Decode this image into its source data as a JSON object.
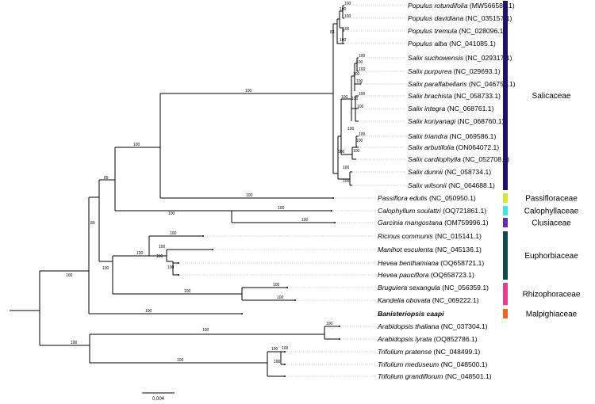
{
  "taxa": [
    {
      "id": "t0",
      "genus": "Populus",
      "species": "rotundifolia",
      "acc": "(MW566588.1)",
      "ymid": 0
    },
    {
      "id": "t1",
      "genus": "Populus",
      "species": "davidiana",
      "acc": "(NC_035157.1)"
    },
    {
      "id": "t2",
      "genus": "Populus",
      "species": "tremula",
      "acc": "(NC_028096.1)"
    },
    {
      "id": "t3",
      "genus": "Populus",
      "species": "alba",
      "acc": "(NC_041085.1)"
    },
    {
      "id": "t4",
      "genus": "Salix",
      "species": "suchowensis",
      "acc": "(NC_029317.1)"
    },
    {
      "id": "t5",
      "genus": "Salix",
      "species": "purpurea",
      "acc": "(NC_029693.1)"
    },
    {
      "id": "t6",
      "genus": "Salix",
      "species": "paraflabellaris",
      "acc": "(NC_046754.1)"
    },
    {
      "id": "t7",
      "genus": "Salix",
      "species": "brachista",
      "acc": "(NC_058733.1)"
    },
    {
      "id": "t8",
      "genus": "Salix",
      "species": "integra",
      "acc": "(NC_068761.1)"
    },
    {
      "id": "t9",
      "genus": "Salix",
      "species": "koriyanagi",
      "acc": "(NC_068760.1)"
    },
    {
      "id": "t10",
      "genus": "Salix",
      "species": "triandra",
      "acc": "(NC_069586.1)"
    },
    {
      "id": "t11",
      "genus": "Salix",
      "species": "arbutifolia",
      "acc": "(ON064072.1)"
    },
    {
      "id": "t12",
      "genus": "Salix",
      "species": "cardiophylla",
      "acc": "(NC_052708.1)"
    },
    {
      "id": "t13",
      "genus": "Salix",
      "species": "dunnii",
      "acc": "(NC_058734.1)"
    },
    {
      "id": "t14",
      "genus": "Salix",
      "species": "wilsonii",
      "acc": "(NC_064688.1)"
    },
    {
      "id": "t15",
      "genus": "Passiflora",
      "species": "edulis",
      "acc": "(NC_050950.1)"
    },
    {
      "id": "t16",
      "genus": "Calophyllum",
      "species": "soulattri",
      "acc": "(OQ721861.1)"
    },
    {
      "id": "t17",
      "genus": "Garcinia",
      "species": "mangostana",
      "acc": "(OM759996.1)"
    },
    {
      "id": "t18",
      "genus": "Ricinus",
      "species": "communis",
      "acc": "(NC_015141.1)"
    },
    {
      "id": "t19",
      "genus": "Manihot",
      "species": "esculenta",
      "acc": " (NC_045136.1)"
    },
    {
      "id": "t20",
      "genus": "Hevea",
      "species": "benthamiana",
      "acc": "(OQ658721.1)"
    },
    {
      "id": "t21",
      "genus": "Hevea",
      "species": "pauciflora",
      "acc": "(OQ658723.1)"
    },
    {
      "id": "t22",
      "genus": "Bruguiera",
      "species": "sexangula",
      "acc": "(NC_056359.1)"
    },
    {
      "id": "t23",
      "genus": "Kandelia",
      "species": "obovata",
      "acc": "(NC_069222.1)"
    },
    {
      "id": "t24",
      "genus": "Banisteriopsis",
      "species": "caapi",
      "acc": "",
      "bold": true
    },
    {
      "id": "t25",
      "genus": "Arabidopsis",
      "species": "thaliana",
      "acc": "(NC_037304.1)"
    },
    {
      "id": "t26",
      "genus": "Arabidopsis",
      "species": "lyrata",
      "acc": "(OQ852786.1)"
    },
    {
      "id": "t27",
      "genus": "Trifolium",
      "species": "pratense",
      "acc": "(NC_048499.1)"
    },
    {
      "id": "t28",
      "genus": "Trifolium",
      "species": "meduseum",
      "acc": "(NC_048500.1)"
    },
    {
      "id": "t29",
      "genus": "Trifolium",
      "species": "grandiflorum",
      "acc": "(NC_048501.1)"
    }
  ],
  "families": [
    {
      "name": "Salicaceae",
      "color": "#1f1068",
      "from": 0,
      "to": 14
    },
    {
      "name": "Passifloraceae",
      "color": "#d6e637",
      "from": 15,
      "to": 15
    },
    {
      "name": "Calophyllaceae",
      "color": "#3ee6e6",
      "from": 16,
      "to": 16
    },
    {
      "name": "Clusiaceae",
      "color": "#6a2ab0",
      "from": 17,
      "to": 17
    },
    {
      "name": "Euphorbiaceae",
      "color": "#0f4a4a",
      "from": 18,
      "to": 21
    },
    {
      "name": "Rhizophoraceae",
      "color": "#e63c8f",
      "from": 22,
      "to": 23
    },
    {
      "name": "Malpighiaceae",
      "color": "#f0641e",
      "from": 24,
      "to": 24
    }
  ],
  "supports": [
    "100",
    "100",
    "100",
    "100",
    "100",
    "83",
    "100",
    "100",
    "100",
    "100",
    "100",
    "100",
    "100",
    "100",
    "100",
    "100",
    "100",
    "100",
    "100",
    "100",
    "100",
    "100",
    "100",
    "100",
    "100",
    "100",
    "100",
    "100",
    "89",
    "89",
    "100",
    "100",
    "100",
    "100",
    "100",
    "100",
    "100",
    "100",
    "100",
    "100",
    "100",
    "100"
  ],
  "scale_bar": {
    "label": "0.004"
  }
}
